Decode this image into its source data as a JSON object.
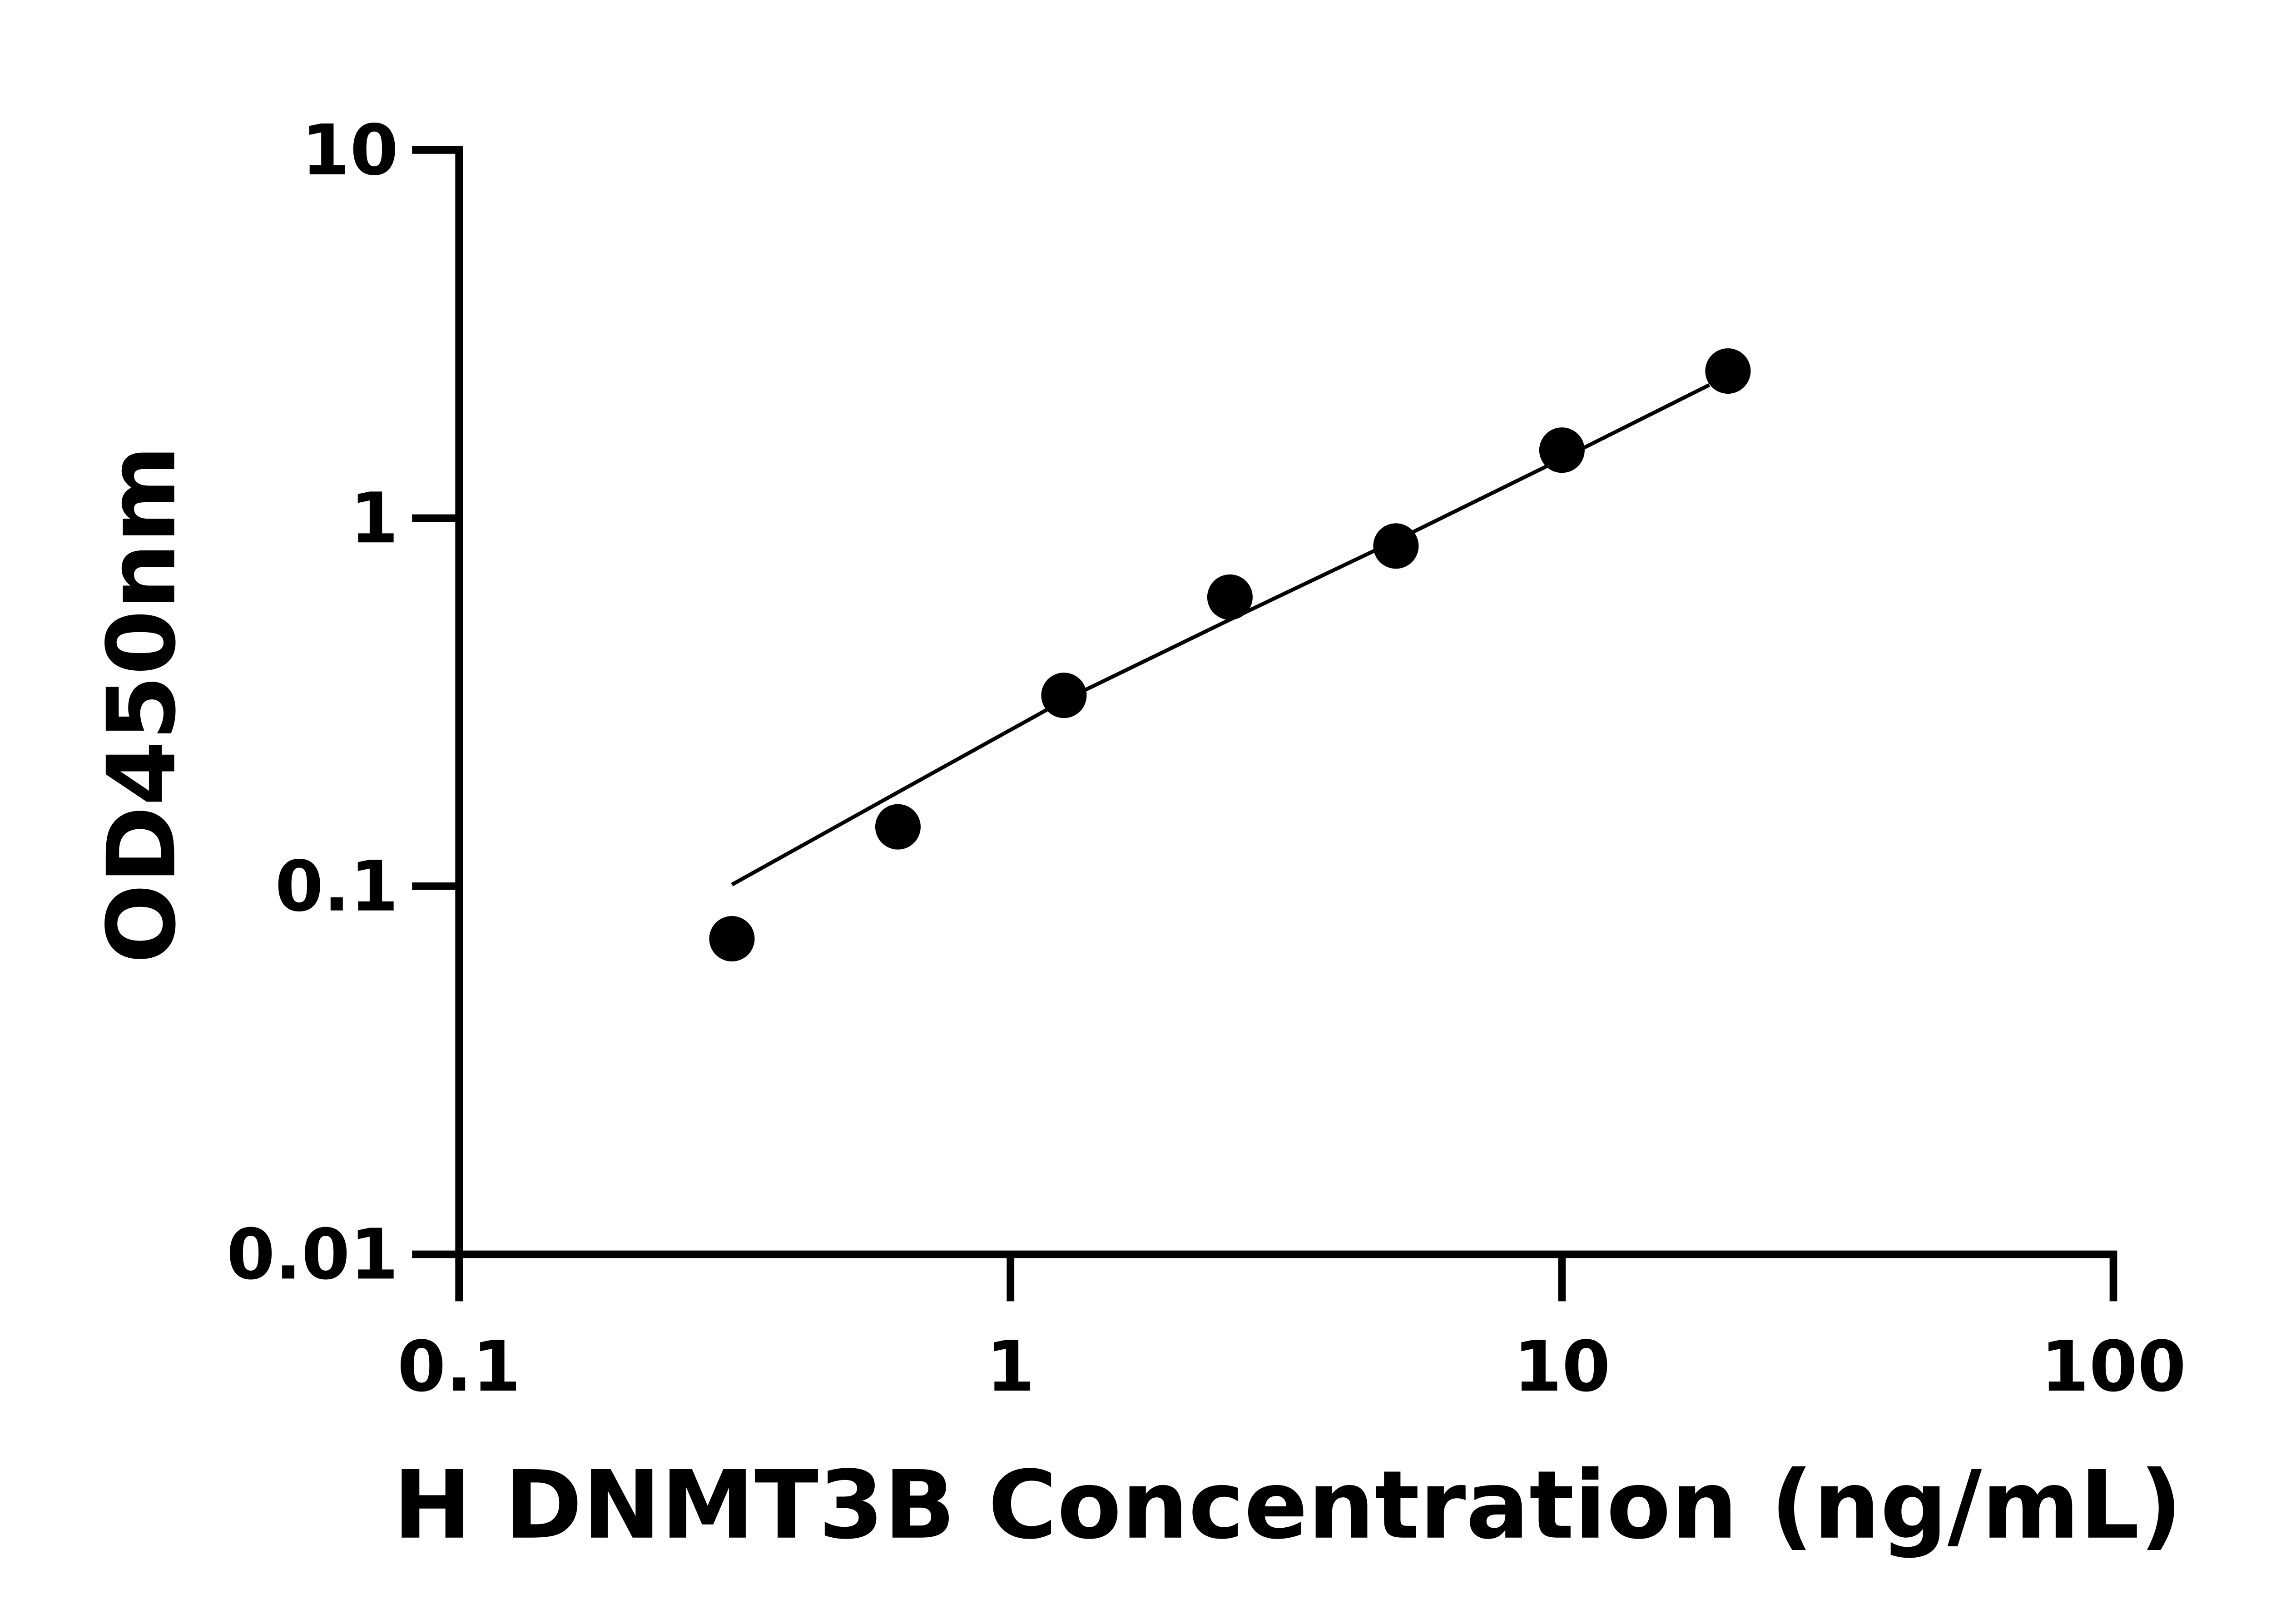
{
  "chart_data": {
    "type": "scatter",
    "x_label": "H DNMT3B Concentration (ng/mL)",
    "y_label": "OD450nm",
    "x": [
      0.3125,
      0.625,
      1.25,
      2.5,
      5,
      10,
      20
    ],
    "values": [
      0.072,
      0.145,
      0.33,
      0.61,
      0.84,
      1.53,
      2.51
    ],
    "color": "#000000",
    "fit": {
      "x": [
        0.3125,
        0.625,
        1.25,
        2.5,
        5,
        10,
        18.5
      ],
      "values": [
        0.101,
        0.18,
        0.32,
        0.53,
        0.87,
        1.45,
        2.3
      ]
    },
    "xlim": [
      0.1,
      100
    ],
    "xticks": [
      0.1,
      1,
      10,
      100
    ],
    "ylim": [
      0.01,
      10
    ],
    "yticks": [
      0.01,
      0.1,
      1,
      10
    ],
    "x_log": true,
    "y_log": true,
    "grid": false
  }
}
